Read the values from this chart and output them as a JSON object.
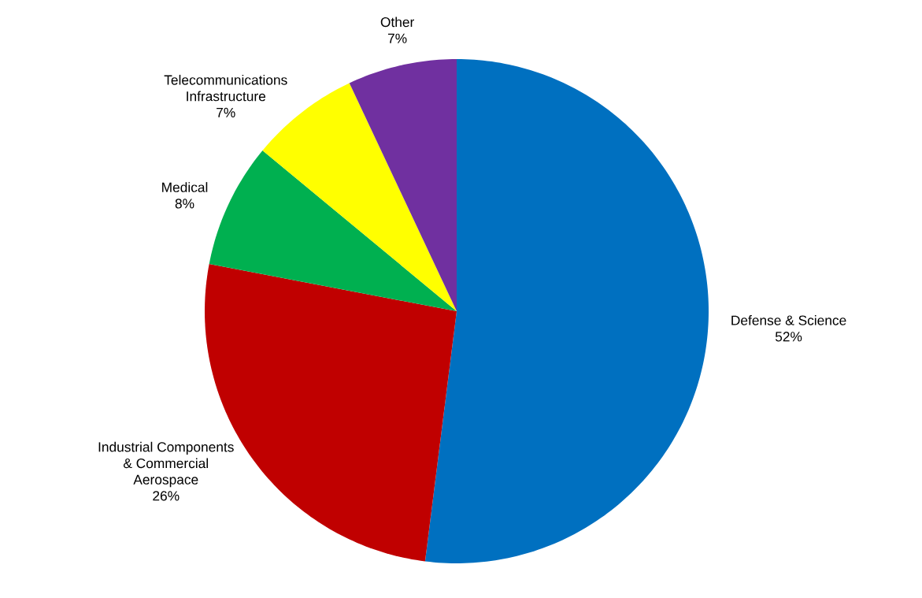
{
  "chart_data": {
    "type": "pie",
    "categories": [
      "Defense & Science",
      "Industrial Components & Commercial Aerospace",
      "Medical",
      "Telecommunications Infrastructure",
      "Other"
    ],
    "values": [
      52,
      26,
      8,
      7,
      7
    ],
    "value_labels": [
      "52%",
      "26%",
      "8%",
      "7%",
      "7%"
    ],
    "colors": [
      "#0070c0",
      "#c00000",
      "#00b050",
      "#ffff00",
      "#7030a0"
    ]
  }
}
